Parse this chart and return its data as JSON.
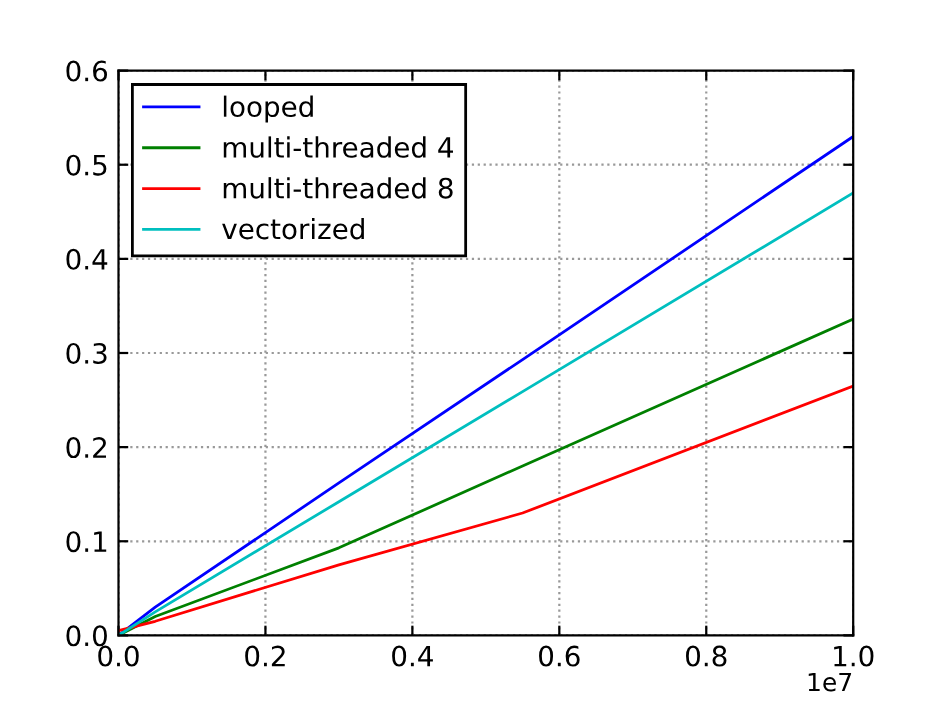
{
  "chart_data": {
    "type": "line",
    "x": [
      0,
      0.05,
      0.3,
      0.55,
      1.0
    ],
    "series": [
      {
        "name": "looped",
        "color": "#0000ff",
        "values": [
          0,
          0.03,
          0.162,
          0.293,
          0.53
        ]
      },
      {
        "name": "multi-threaded 4",
        "color": "#008000",
        "values": [
          0,
          0.02,
          0.093,
          0.18,
          0.336
        ]
      },
      {
        "name": "multi-threaded 8",
        "color": "#ff0000",
        "values": [
          0.005,
          0.015,
          0.075,
          0.13,
          0.265
        ]
      },
      {
        "name": "vectorized",
        "color": "#00bfbf",
        "values": [
          0,
          0.025,
          0.142,
          0.259,
          0.47
        ]
      }
    ],
    "xlim": [
      0,
      1.0
    ],
    "xticks": [
      {
        "value": 0,
        "label": "0.0"
      },
      0.2,
      0.4,
      0.6,
      0.8,
      {
        "value": 1.0,
        "label": "1.0"
      }
    ],
    "ylim": [
      0,
      0.6
    ],
    "yticks": [
      {
        "value": 0,
        "label": "0.0"
      },
      0.1,
      0.2,
      0.3,
      0.4,
      0.5,
      0.6
    ],
    "annotations": [
      "1e7"
    ],
    "grid": true,
    "legend": "top left",
    "marker": "none",
    "line_style": "solid"
  }
}
